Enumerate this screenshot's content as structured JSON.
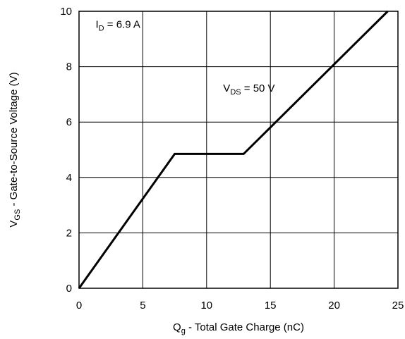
{
  "chart_data": {
    "type": "line",
    "title": "",
    "xlabel": {
      "main": "Q",
      "sub": "g",
      "rest": " - Total Gate Charge (nC)"
    },
    "ylabel": {
      "main": "V",
      "sub": "GS",
      "rest": " - Gate-to-Source Voltage (V)"
    },
    "xlim": [
      0,
      25
    ],
    "ylim": [
      0,
      10
    ],
    "xticks": [
      0,
      5,
      10,
      15,
      20,
      25
    ],
    "yticks": [
      0,
      2,
      4,
      6,
      8,
      10
    ],
    "grid": true,
    "series": [
      {
        "x": [
          0,
          7.5,
          12.9,
          24.2
        ],
        "y": [
          0,
          4.85,
          4.85,
          10
        ]
      }
    ],
    "annotations": [
      {
        "id": "id-label",
        "main": "I",
        "sub": "D",
        "rest": " = 6.9 A",
        "x": 1.3,
        "y": 9.4
      },
      {
        "id": "vds-label",
        "main": "V",
        "sub": "DS",
        "rest": " = 50 V",
        "x": 11.3,
        "y": 7.1
      }
    ]
  }
}
